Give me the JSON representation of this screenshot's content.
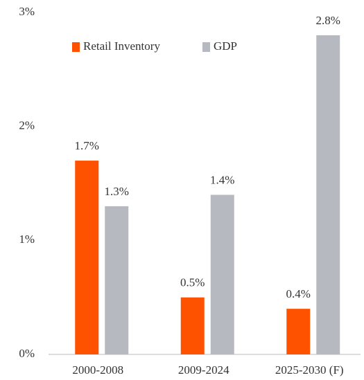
{
  "chart_data": {
    "type": "bar",
    "categories": [
      "2000-2008",
      "2009-2024",
      "2025-2030 (F)"
    ],
    "series": [
      {
        "name": "Retail Inventory",
        "color": "#ff5200",
        "values": [
          1.7,
          0.5,
          0.4
        ],
        "value_labels": [
          "1.7%",
          "0.5%",
          "0.4%"
        ]
      },
      {
        "name": "GDP",
        "color": "#b6bac0",
        "values": [
          1.3,
          1.4,
          2.8
        ],
        "value_labels": [
          "1.3%",
          "1.4%",
          "2.8%"
        ]
      }
    ],
    "ylim": [
      0,
      3
    ],
    "yticks": [
      {
        "value": 0,
        "label": "0%"
      },
      {
        "value": 1,
        "label": "1%"
      },
      {
        "value": 2,
        "label": "2%"
      },
      {
        "value": 3,
        "label": "3%"
      }
    ],
    "grid": false,
    "legend": "top"
  }
}
